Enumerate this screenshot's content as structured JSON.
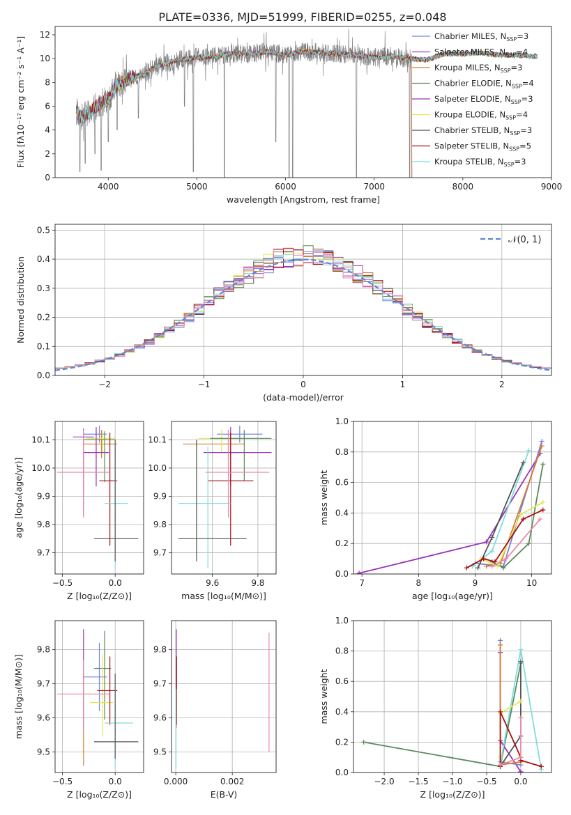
{
  "figure": {
    "title": "PLATE=0336, MJD=51999, FIBERID=0255, z=0.048"
  },
  "colors": {
    "Chabrier MILES": "#6f86e0",
    "Salpeter MILES": "#a040b0",
    "Kroupa MILES": "#d97a2a",
    "Chabrier ELODIE": "#5a8a5a",
    "Salpeter ELODIE": "#9a30b8",
    "Kroupa ELODIE": "#e6e65a",
    "Chabrier STELIB": "#555555",
    "Salpeter STELIB": "#aa1010",
    "Kroupa STELIB": "#80dcdc"
  },
  "chart_data": [
    {
      "id": "spectrum",
      "type": "line",
      "xlabel": "wavelength [Angstrom, rest frame]",
      "ylabel": "Flux [fλ10⁻¹⁷ erg cm⁻² s⁻¹ A⁻¹]",
      "xlim": [
        3400,
        9000
      ],
      "ylim": [
        0,
        12.7
      ],
      "xticks": [
        4000,
        5000,
        6000,
        7000,
        8000,
        9000
      ],
      "yticks": [
        0,
        2,
        4,
        6,
        8,
        10,
        12
      ],
      "legend_position": "top-right",
      "legend": [
        {
          "label": "Chabrier MILES, N",
          "sub": "SSP",
          "suffix": "=3",
          "key": "Chabrier MILES"
        },
        {
          "label": "Salpeter MILES, N",
          "sub": "SSP",
          "suffix": "=4",
          "key": "Salpeter MILES"
        },
        {
          "label": "Kroupa MILES, N",
          "sub": "SSP",
          "suffix": "=3",
          "key": "Kroupa MILES"
        },
        {
          "label": "Chabrier ELODIE, N",
          "sub": "SSP",
          "suffix": "=4",
          "key": "Chabrier ELODIE"
        },
        {
          "label": "Salpeter ELODIE, N",
          "sub": "SSP",
          "suffix": "=3",
          "key": "Salpeter ELODIE"
        },
        {
          "label": "Kroupa ELODIE, N",
          "sub": "SSP",
          "suffix": "=4",
          "key": "Kroupa ELODIE"
        },
        {
          "label": "Chabrier STELIB, N",
          "sub": "SSP",
          "suffix": "=3",
          "key": "Chabrier STELIB"
        },
        {
          "label": "Salpeter STELIB, N",
          "sub": "SSP",
          "suffix": "=5",
          "key": "Salpeter STELIB"
        },
        {
          "label": "Kroupa STELIB, N",
          "sub": "SSP",
          "suffix": "=3",
          "key": "Kroupa STELIB"
        }
      ],
      "continuum": [
        [
          3640,
          5.6
        ],
        [
          3700,
          5.0
        ],
        [
          3800,
          5.6
        ],
        [
          3900,
          6.2
        ],
        [
          4000,
          6.6
        ],
        [
          4100,
          7.8
        ],
        [
          4200,
          8.2
        ],
        [
          4300,
          8.5
        ],
        [
          4400,
          8.6
        ],
        [
          4500,
          9.2
        ],
        [
          4600,
          9.5
        ],
        [
          4800,
          9.9
        ],
        [
          5000,
          10.1
        ],
        [
          5200,
          10.2
        ],
        [
          5400,
          10.4
        ],
        [
          5600,
          10.4
        ],
        [
          5800,
          10.6
        ],
        [
          6000,
          10.3
        ],
        [
          6200,
          10.6
        ],
        [
          6400,
          10.5
        ],
        [
          6600,
          10.4
        ],
        [
          6800,
          10.3
        ],
        [
          7000,
          10.1
        ],
        [
          7200,
          10.2
        ],
        [
          7400,
          10.0
        ],
        [
          7600,
          9.9
        ],
        [
          7800,
          10.4
        ],
        [
          8000,
          10.4
        ],
        [
          8200,
          10.5
        ],
        [
          8400,
          10.3
        ],
        [
          8600,
          10.3
        ],
        [
          8800,
          10.2
        ]
      ],
      "data_range": [
        3640,
        8840
      ],
      "noisy_range": [
        3640,
        7420
      ],
      "absorption_lines": [
        [
          3680,
          0.5
        ],
        [
          3740,
          1.2
        ],
        [
          3850,
          2.0
        ],
        [
          3920,
          0.6
        ],
        [
          4000,
          3.0
        ],
        [
          4100,
          4.0
        ],
        [
          4340,
          5.0
        ],
        [
          4860,
          6.0
        ],
        [
          4960,
          0.5
        ],
        [
          5310,
          0.0
        ],
        [
          5890,
          3.0
        ],
        [
          6040,
          0.0
        ],
        [
          6080,
          0.0
        ],
        [
          6800,
          0.0
        ],
        [
          7400,
          0.0
        ]
      ]
    },
    {
      "id": "residuals",
      "type": "area",
      "xlabel": "(data-model)/error",
      "ylabel": "Normed distribution",
      "xlim": [
        -2.5,
        2.5
      ],
      "ylim": [
        0,
        0.52
      ],
      "xticks": [
        -2,
        -1,
        0,
        1,
        2
      ],
      "yticks": [
        0.0,
        0.1,
        0.2,
        0.3,
        0.4,
        0.5
      ],
      "legend_position": "top-right",
      "gaussian_label": "𝒩(0, 1)",
      "bin_width": 0.1
    },
    {
      "id": "age-vs-Z",
      "type": "scatter",
      "xlabel": "Z [log₁₀(Z/Z⊙)]",
      "ylabel": "age  [log₁₀(age/yr)]",
      "xlim": [
        -0.57,
        0.27
      ],
      "ylim": [
        9.625,
        10.165
      ],
      "xticks": [
        -0.5,
        0.0
      ],
      "yticks": [
        9.7,
        9.8,
        9.9,
        10.0,
        10.1
      ],
      "points": [
        {
          "key": "Chabrier MILES",
          "x": -0.15,
          "xlo": 0.15,
          "xhi": 0.07,
          "y": 10.12,
          "ylo": 0.03,
          "yhi": 0.03
        },
        {
          "key": "Kroupa MILES",
          "x": -0.13,
          "xlo": 0.17,
          "xhi": 0.15,
          "y": 10.085,
          "ylo": 0.05,
          "yhi": 0.05
        },
        {
          "key": "Kroupa ELODIE",
          "x": -0.12,
          "xlo": 0.15,
          "xhi": 0.12,
          "y": 10.105,
          "ylo": 0.05,
          "yhi": 0.03
        },
        {
          "key": "Salpeter ELODIE",
          "x": -0.18,
          "xlo": 0.12,
          "xhi": 0.12,
          "y": 10.055,
          "ylo": 0.12,
          "yhi": 0.09
        },
        {
          "key": "Salpeter MILES",
          "x": -0.3,
          "xlo": 0.1,
          "xhi": 0.1,
          "y": 10.11,
          "ylo": 0.2,
          "yhi": 0.03
        },
        {
          "key": "Chabrier ELODIE",
          "x": -0.1,
          "xlo": 0.2,
          "xhi": 0.1,
          "y": 10.1,
          "ylo": 0.15,
          "yhi": 0.03
        },
        {
          "key": "Salpeter STELIB",
          "x": -0.05,
          "xlo": 0.1,
          "xhi": 0.07,
          "y": 9.955,
          "ylo": 0.23,
          "yhi": 0.17
        },
        {
          "key": "Kroupa STELIB",
          "x": 0.0,
          "xlo": 0.1,
          "xhi": 0.12,
          "y": 9.875,
          "ylo": 0.23,
          "yhi": 0.2
        },
        {
          "key": "Chabrier STELIB",
          "x": 0.0,
          "xlo": 0.2,
          "xhi": 0.22,
          "y": 9.75,
          "ylo": 0.08,
          "yhi": 0.35
        },
        {
          "key": "Salpeter ELODIE",
          "x": -0.3,
          "xlo": 0.0,
          "xhi": 0.0,
          "y": 10.0,
          "ylo": 0.17,
          "yhi": 0.05
        }
      ],
      "pink_point": {
        "x": -0.3,
        "xlo": 0.25,
        "xhi": 0.25,
        "y": 9.985,
        "ylo": 0.16,
        "yhi": 0.15,
        "color": "#ee88aa"
      }
    },
    {
      "id": "age-vs-mass",
      "type": "scatter",
      "xlabel": "mass [log₁₀(M/M⊙)]",
      "ylabel": "",
      "xlim": [
        9.42,
        9.88
      ],
      "ylim": [
        9.625,
        10.165
      ],
      "xticks": [
        9.6,
        9.8
      ],
      "yticks": [
        9.7,
        9.8,
        9.9,
        10.0,
        10.1
      ],
      "points": [
        {
          "key": "Chabrier MILES",
          "x": 9.72,
          "xlo": 0.1,
          "xhi": 0.1,
          "y": 10.12,
          "ylo": 0.03,
          "yhi": 0.03
        },
        {
          "key": "Kroupa MILES",
          "x": 9.67,
          "xlo": 0.2,
          "xhi": 0.07,
          "y": 10.085,
          "ylo": 0.05,
          "yhi": 0.05
        },
        {
          "key": "Kroupa ELODIE",
          "x": 9.64,
          "xlo": 0.1,
          "xhi": 0.1,
          "y": 10.105,
          "ylo": 0.05,
          "yhi": 0.03
        },
        {
          "key": "Chabrier ELODIE",
          "x": 9.74,
          "xlo": 0.15,
          "xhi": 0.12,
          "y": 10.105,
          "ylo": 0.15,
          "yhi": 0.03
        },
        {
          "key": "Salpeter ELODIE",
          "x": 9.68,
          "xlo": 0.12,
          "xhi": 0.18,
          "y": 10.055,
          "ylo": 0.12,
          "yhi": 0.09
        },
        {
          "key": "Salpeter STELIB",
          "x": 9.68,
          "xlo": 0.1,
          "xhi": 0.1,
          "y": 9.955,
          "ylo": 0.23,
          "yhi": 0.17
        },
        {
          "key": "Kroupa STELIB",
          "x": 9.58,
          "xlo": 0.13,
          "xhi": 0.1,
          "y": 9.875,
          "ylo": 0.23,
          "yhi": 0.2
        },
        {
          "key": "Chabrier STELIB",
          "x": 9.53,
          "xlo": 0.08,
          "xhi": 0.22,
          "y": 9.75,
          "ylo": 0.08,
          "yhi": 0.35
        }
      ],
      "pink_point": {
        "x": 9.67,
        "xlo": 0.1,
        "xhi": 0.18,
        "y": 9.985,
        "ylo": 0.16,
        "yhi": 0.15,
        "color": "#ee88aa"
      }
    },
    {
      "id": "massweight-vs-age",
      "type": "line",
      "xlabel": "age  [log₁₀(age/yr)]",
      "ylabel": "mass weight",
      "xlim": [
        6.85,
        10.35
      ],
      "ylim": [
        0,
        1.0
      ],
      "xticks": [
        7,
        8,
        9,
        10
      ],
      "yticks": [
        0.0,
        0.2,
        0.4,
        0.6,
        0.8,
        1.0
      ],
      "series": [
        {
          "key": "Salpeter ELODIE",
          "x": [
            6.95,
            9.2,
            10.15
          ],
          "y": [
            0.005,
            0.21,
            0.79
          ]
        },
        {
          "key": "Chabrier MILES",
          "x": [
            9.0,
            9.5,
            10.18
          ],
          "y": [
            0.07,
            0.05,
            0.87
          ]
        },
        {
          "key": "Kroupa MILES",
          "x": [
            9.2,
            9.45,
            10.18
          ],
          "y": [
            0.05,
            0.07,
            0.84
          ]
        },
        {
          "key": "Kroupa STELIB",
          "x": [
            8.95,
            9.3,
            9.95
          ],
          "y": [
            0.05,
            0.15,
            0.81
          ]
        },
        {
          "key": "Chabrier STELIB",
          "x": [
            9.05,
            9.3,
            9.85
          ],
          "y": [
            0.04,
            0.24,
            0.73
          ]
        },
        {
          "key": "Chabrier ELODIE",
          "x": [
            9.3,
            9.5,
            9.95,
            10.2
          ],
          "y": [
            0.08,
            0.04,
            0.2,
            0.72
          ]
        },
        {
          "key": "Kroupa ELODIE",
          "x": [
            9.1,
            9.4,
            9.8,
            10.2
          ],
          "y": [
            0.1,
            0.05,
            0.39,
            0.47
          ]
        },
        {
          "key": "Salpeter STELIB",
          "x": [
            8.85,
            9.15,
            9.35,
            9.85,
            10.2
          ],
          "y": [
            0.04,
            0.1,
            0.08,
            0.36,
            0.42
          ]
        },
        {
          "key": "pink",
          "x": [
            9.3,
            9.55,
            10.15
          ],
          "y": [
            0.05,
            0.1,
            0.36
          ],
          "color": "#ee88aa"
        }
      ]
    },
    {
      "id": "mass-vs-Z",
      "type": "scatter",
      "xlabel": "Z [log₁₀(Z/Z⊙)]",
      "ylabel": "mass [log₁₀(M/M⊙)]",
      "xlim": [
        -0.57,
        0.27
      ],
      "ylim": [
        9.44,
        9.885
      ],
      "xticks": [
        -0.5,
        0.0
      ],
      "yticks": [
        9.5,
        9.6,
        9.7,
        9.8
      ],
      "points": [
        {
          "key": "Chabrier MILES",
          "x": -0.15,
          "xlo": 0.15,
          "xhi": 0.07,
          "y": 9.72,
          "ylo": 0.1,
          "yhi": 0.1
        },
        {
          "key": "Kroupa MILES",
          "x": -0.3,
          "xlo": 0.0,
          "xhi": 0.0,
          "y": 9.67,
          "ylo": 0.21,
          "yhi": 0.07
        },
        {
          "key": "Salpeter ELODIE",
          "x": -0.3,
          "xlo": 0.0,
          "xhi": 0.0,
          "y": 9.69,
          "ylo": 0.12,
          "yhi": 0.17
        },
        {
          "key": "Chabrier ELODIE",
          "x": -0.1,
          "xlo": 0.1,
          "xhi": 0.06,
          "y": 9.745,
          "ylo": 0.15,
          "yhi": 0.11
        },
        {
          "key": "Kroupa ELODIE",
          "x": -0.12,
          "xlo": 0.12,
          "xhi": 0.1,
          "y": 9.645,
          "ylo": 0.1,
          "yhi": 0.14
        },
        {
          "key": "Salpeter STELIB",
          "x": -0.05,
          "xlo": 0.12,
          "xhi": 0.07,
          "y": 9.68,
          "ylo": 0.1,
          "yhi": 0.1
        },
        {
          "key": "Kroupa STELIB",
          "x": 0.0,
          "xlo": 0.1,
          "xhi": 0.17,
          "y": 9.585,
          "ylo": 0.13,
          "yhi": 0.1
        },
        {
          "key": "Chabrier STELIB",
          "x": 0.0,
          "xlo": 0.2,
          "xhi": 0.22,
          "y": 9.53,
          "ylo": 0.05,
          "yhi": 0.2
        }
      ],
      "pink_point": {
        "x": -0.3,
        "xlo": 0.25,
        "xhi": 0.25,
        "y": 9.67,
        "ylo": 0.1,
        "yhi": 0.1,
        "color": "#ee88aa"
      }
    },
    {
      "id": "mass-vs-EBV",
      "type": "scatter",
      "xlabel": "E(B-V)",
      "ylabel": "",
      "xlim": [
        -0.00015,
        0.00355
      ],
      "ylim": [
        9.44,
        9.885
      ],
      "xticks": [
        0.0,
        0.002
      ],
      "xtick_labels": [
        "0.000",
        "0.002"
      ],
      "yticks": [
        9.5,
        9.6,
        9.7,
        9.8
      ],
      "points": [
        {
          "key": "Salpeter ELODIE",
          "x": 2e-05,
          "y": 9.69,
          "ylo": 0.12,
          "yhi": 0.17
        },
        {
          "key": "Salpeter STELIB",
          "x": 3e-05,
          "y": 9.68,
          "ylo": 0.1,
          "yhi": 0.1
        },
        {
          "key": "Kroupa STELIB",
          "x": 1e-05,
          "y": 9.585,
          "ylo": 0.13,
          "yhi": 0.1
        }
      ],
      "pink_point": {
        "x": 0.0033,
        "y": 9.67,
        "ylo": 0.17,
        "yhi": 0.18,
        "color": "#ee88aa"
      }
    },
    {
      "id": "massweight-vs-Z",
      "type": "line",
      "xlabel": "Z [log₁₀(Z/Z⊙)]",
      "ylabel": "mass weight",
      "xlim": [
        -2.45,
        0.45
      ],
      "ylim": [
        0,
        1.0
      ],
      "xticks": [
        -2.0,
        -1.5,
        -1.0,
        -0.5,
        0.0
      ],
      "yticks": [
        0.0,
        0.2,
        0.4,
        0.6,
        0.8,
        1.0
      ],
      "series": [
        {
          "key": "Chabrier ELODIE",
          "x": [
            -2.3,
            -0.3,
            0.0
          ],
          "y": [
            0.2,
            0.04,
            0.72
          ]
        },
        {
          "key": "Salpeter ELODIE",
          "x": [
            -0.3,
            -0.3,
            0.0
          ],
          "y": [
            0.79,
            0.21,
            0.005
          ]
        },
        {
          "key": "Chabrier MILES",
          "x": [
            -0.3,
            -0.3,
            0.0
          ],
          "y": [
            0.87,
            0.07,
            0.05
          ]
        },
        {
          "key": "Kroupa MILES",
          "x": [
            -0.3,
            -0.3,
            0.0
          ],
          "y": [
            0.84,
            0.05,
            0.07
          ]
        },
        {
          "key": "Kroupa STELIB",
          "x": [
            -0.3,
            0.0,
            0.3
          ],
          "y": [
            0.05,
            0.81,
            0.02
          ]
        },
        {
          "key": "Chabrier STELIB",
          "x": [
            -0.3,
            0.0,
            0.0
          ],
          "y": [
            0.04,
            0.24,
            0.73
          ]
        },
        {
          "key": "Kroupa ELODIE",
          "x": [
            -0.3,
            -0.3,
            -0.3,
            0.0
          ],
          "y": [
            0.1,
            0.05,
            0.39,
            0.47
          ]
        },
        {
          "key": "Salpeter STELIB",
          "x": [
            -0.3,
            -0.3,
            0.0,
            0.0,
            0.3
          ],
          "y": [
            0.04,
            0.4,
            0.1,
            0.08,
            0.04
          ]
        },
        {
          "key": "pink",
          "x": [
            -0.3,
            0.0,
            0.0
          ],
          "y": [
            0.05,
            0.1,
            0.36
          ],
          "color": "#ee88aa"
        }
      ]
    }
  ]
}
